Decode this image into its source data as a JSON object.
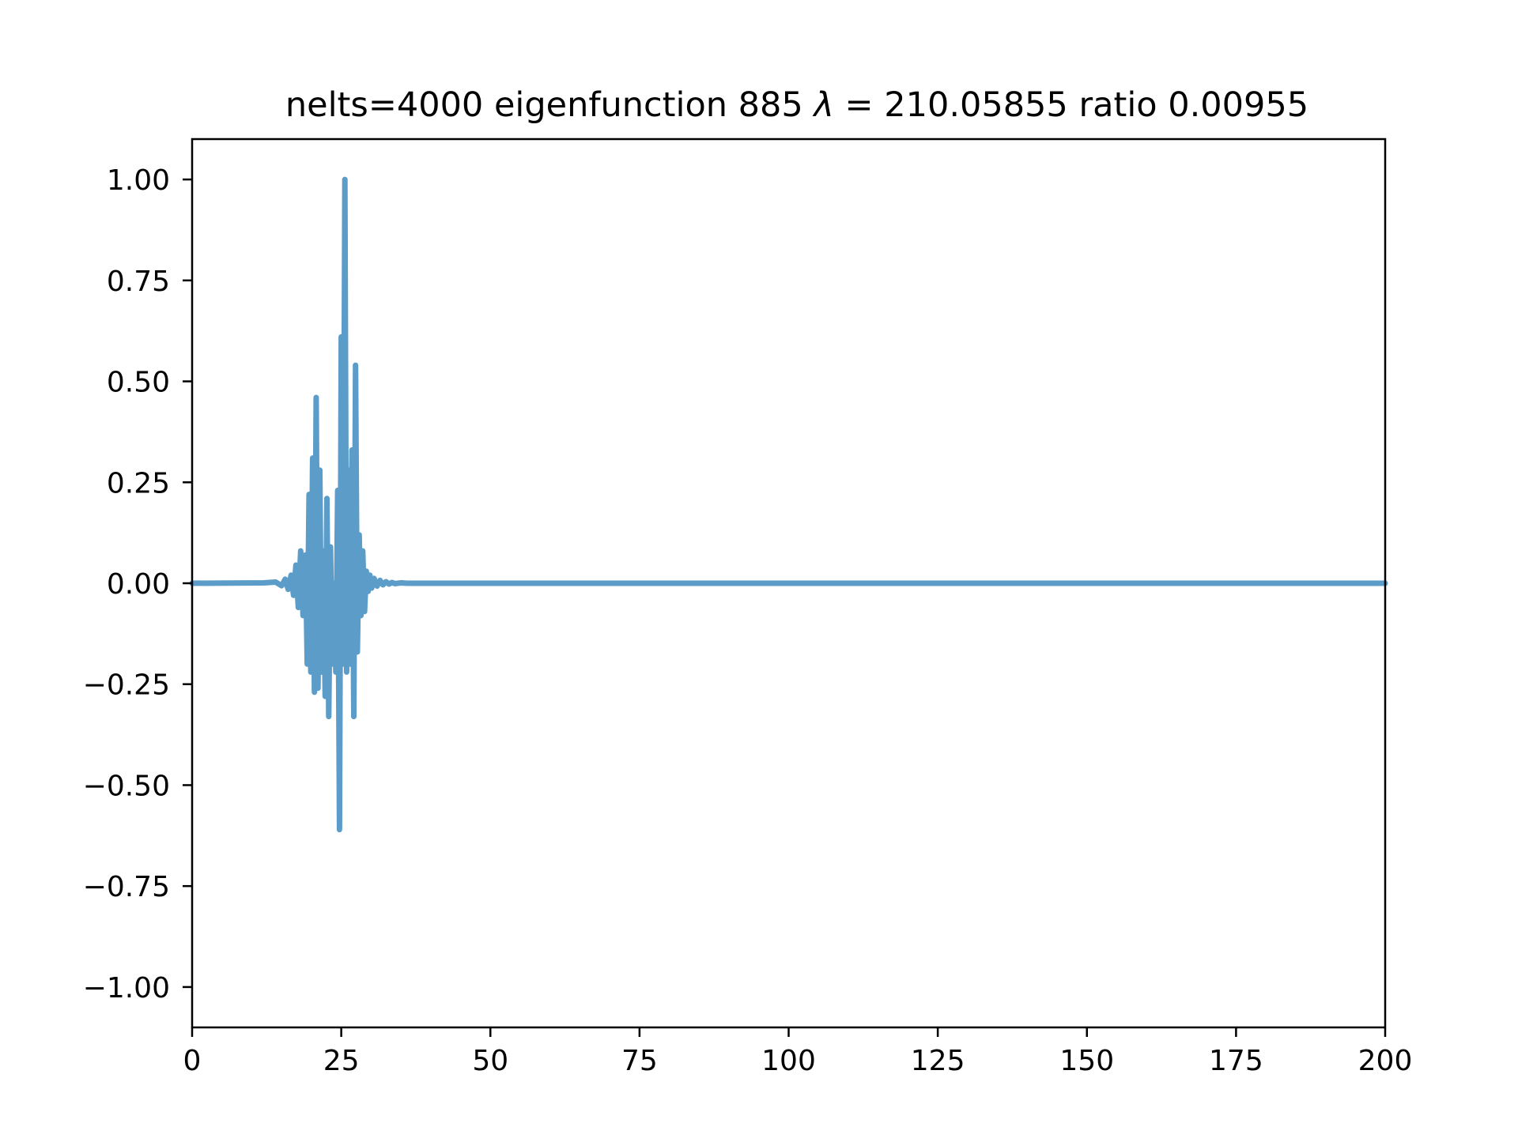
{
  "chart_data": {
    "type": "line",
    "title_prefix": "nelts=4000  eigenfunction 885  ",
    "title_lambda": "λ",
    "title_suffix": " = 210.05855 ratio 0.00955",
    "xlabel": "",
    "ylabel": "",
    "xlim": [
      0,
      200
    ],
    "ylim": [
      -1.1,
      1.1
    ],
    "xticks": [
      0,
      25,
      50,
      75,
      100,
      125,
      150,
      175,
      200
    ],
    "xtick_labels": [
      "0",
      "25",
      "50",
      "75",
      "100",
      "125",
      "150",
      "175",
      "200"
    ],
    "yticks": [
      1.0,
      0.75,
      0.5,
      0.25,
      0.0,
      -0.25,
      -0.5,
      -0.75,
      -1.0
    ],
    "ytick_labels": [
      "1.00",
      "0.75",
      "0.50",
      "0.25",
      "0.00",
      "−0.25",
      "−0.50",
      "−0.75",
      "−1.00"
    ],
    "grid": false,
    "line_color": "#5b9cc8",
    "series": [
      {
        "x": [
          0,
          12,
          14,
          15,
          15.6,
          16.1,
          16.6,
          17.0,
          17.4,
          17.8,
          18.2,
          18.6,
          19.0,
          19.3,
          19.6,
          19.9,
          20.2,
          20.5,
          20.8,
          21.1,
          21.4,
          21.7,
          22.0,
          22.3,
          22.6,
          22.9,
          23.2,
          23.5,
          23.8,
          24.1,
          24.4,
          24.7,
          25.0,
          25.3,
          25.6,
          25.9,
          26.2,
          26.5,
          26.8,
          27.1,
          27.4,
          27.7,
          28.0,
          28.3,
          28.6,
          28.9,
          29.2,
          29.5,
          29.8,
          30.1,
          30.5,
          31.0,
          31.5,
          32.0,
          32.5,
          33.0,
          33.5,
          34.0,
          35.0,
          36.0,
          37.0,
          38.0,
          40.0,
          44.0,
          50.0,
          200.0
        ],
        "y": [
          0,
          0.001,
          0.003,
          -0.006,
          0.01,
          -0.015,
          0.02,
          -0.03,
          0.045,
          -0.06,
          0.08,
          -0.08,
          0.07,
          -0.2,
          0.22,
          -0.22,
          0.31,
          -0.27,
          0.46,
          -0.26,
          0.28,
          -0.22,
          0.08,
          -0.28,
          0.21,
          -0.33,
          0.09,
          -0.2,
          0.0,
          -0.22,
          0.23,
          -0.61,
          0.61,
          -0.2,
          1.0,
          -0.22,
          0.28,
          -0.2,
          0.33,
          -0.33,
          0.54,
          -0.17,
          0.12,
          -0.08,
          0.08,
          -0.07,
          0.03,
          -0.02,
          0.02,
          -0.012,
          0.012,
          -0.007,
          0.007,
          -0.004,
          0.004,
          -0.002,
          0.002,
          -0.001,
          0.001,
          0,
          0,
          0,
          0,
          0,
          0,
          0
        ]
      }
    ]
  }
}
